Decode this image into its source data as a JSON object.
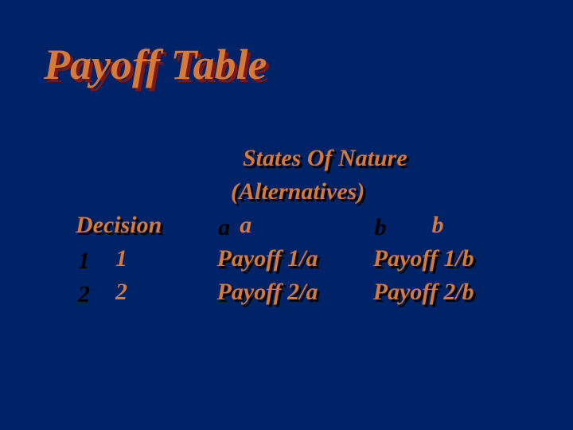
{
  "slide": {
    "title": "Payoff Table",
    "background_color": "#002266",
    "title_color": "#d67a3a",
    "title_shadow_color": "#7a1818",
    "text_color": "#d67a3a",
    "text_shadow_color": "#000000",
    "title_fontsize": 54,
    "body_fontsize": 30,
    "font_style": "bold italic"
  },
  "table": {
    "type": "table",
    "super_header": "States Of Nature",
    "sub_header": "(Alternatives)",
    "columns": [
      "Decision",
      "a",
      "b"
    ],
    "rows": [
      [
        "1",
        "Payoff 1/a",
        "Payoff 1/b"
      ],
      [
        "2",
        "Payoff 2/a",
        "Payoff 2/b"
      ]
    ]
  }
}
